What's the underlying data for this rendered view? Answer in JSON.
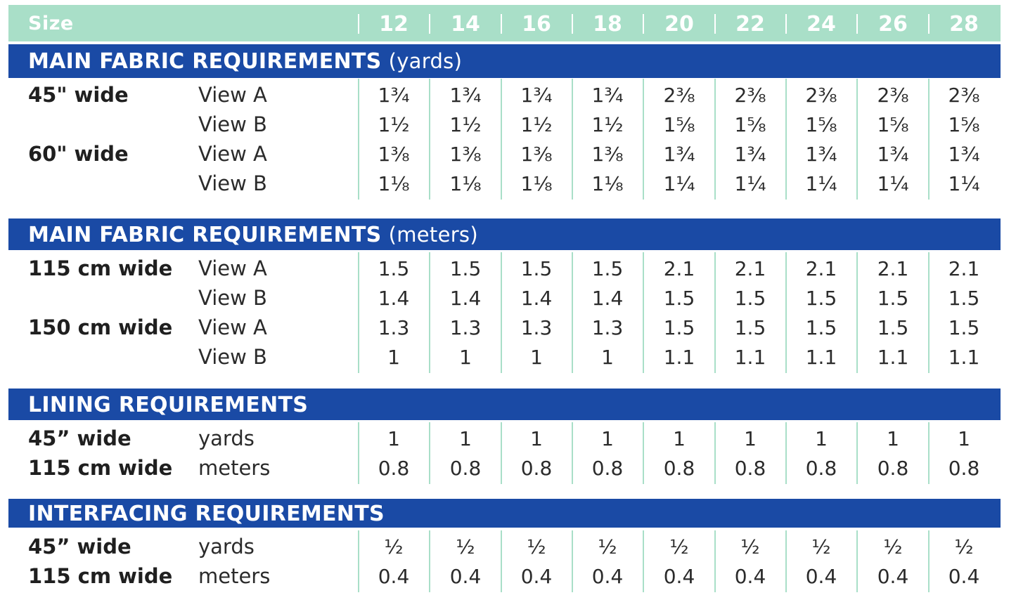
{
  "header": {
    "size_label": "Size",
    "sizes": [
      "12",
      "14",
      "16",
      "18",
      "20",
      "22",
      "24",
      "26",
      "28"
    ]
  },
  "sections": [
    {
      "title": "MAIN FABRIC REQUIREMENTS",
      "unit": "(yards)",
      "rows": [
        {
          "label": "45\" wide",
          "sub": "View A",
          "values": [
            "1¾",
            "1¾",
            "1¾",
            "1¾",
            "2⅜",
            "2⅜",
            "2⅜",
            "2⅜",
            "2⅜"
          ]
        },
        {
          "label": "",
          "sub": "View B",
          "values": [
            "1½",
            "1½",
            "1½",
            "1½",
            "1⅝",
            "1⅝",
            "1⅝",
            "1⅝",
            "1⅝"
          ]
        },
        {
          "label": "60\" wide",
          "sub": "View A",
          "values": [
            "1⅜",
            "1⅜",
            "1⅜",
            "1⅜",
            "1¾",
            "1¾",
            "1¾",
            "1¾",
            "1¾"
          ]
        },
        {
          "label": "",
          "sub": "View B",
          "values": [
            "1⅛",
            "1⅛",
            "1⅛",
            "1⅛",
            "1¼",
            "1¼",
            "1¼",
            "1¼",
            "1¼"
          ]
        }
      ]
    },
    {
      "title": "MAIN FABRIC REQUIREMENTS",
      "unit": "(meters)",
      "rows": [
        {
          "label": "115 cm wide",
          "sub": "View A",
          "values": [
            "1.5",
            "1.5",
            "1.5",
            "1.5",
            "2.1",
            "2.1",
            "2.1",
            "2.1",
            "2.1"
          ]
        },
        {
          "label": "",
          "sub": "View B",
          "values": [
            "1.4",
            "1.4",
            "1.4",
            "1.4",
            "1.5",
            "1.5",
            "1.5",
            "1.5",
            "1.5"
          ]
        },
        {
          "label": "150 cm wide",
          "sub": "View A",
          "values": [
            "1.3",
            "1.3",
            "1.3",
            "1.3",
            "1.5",
            "1.5",
            "1.5",
            "1.5",
            "1.5"
          ]
        },
        {
          "label": "",
          "sub": "View B",
          "values": [
            "1",
            "1",
            "1",
            "1",
            "1.1",
            "1.1",
            "1.1",
            "1.1",
            "1.1"
          ]
        }
      ]
    },
    {
      "title": "LINING REQUIREMENTS",
      "unit": "",
      "rows": [
        {
          "label": "45” wide",
          "sub": "yards",
          "values": [
            "1",
            "1",
            "1",
            "1",
            "1",
            "1",
            "1",
            "1",
            "1"
          ]
        },
        {
          "label": "115 cm wide",
          "sub": "meters",
          "values": [
            "0.8",
            "0.8",
            "0.8",
            "0.8",
            "0.8",
            "0.8",
            "0.8",
            "0.8",
            "0.8"
          ]
        }
      ]
    },
    {
      "title": "INTERFACING REQUIREMENTS",
      "unit": "",
      "rows": [
        {
          "label": "45” wide",
          "sub": "yards",
          "values": [
            "½",
            "½",
            "½",
            "½",
            "½",
            "½",
            "½",
            "½",
            "½"
          ]
        },
        {
          "label": "115 cm wide",
          "sub": "meters",
          "values": [
            "0.4",
            "0.4",
            "0.4",
            "0.4",
            "0.4",
            "0.4",
            "0.4",
            "0.4",
            "0.4"
          ]
        }
      ]
    }
  ],
  "colors": {
    "header_mint": "#a9dfc8",
    "section_blue": "#1a4aa5",
    "text": "#2b2b2b"
  }
}
